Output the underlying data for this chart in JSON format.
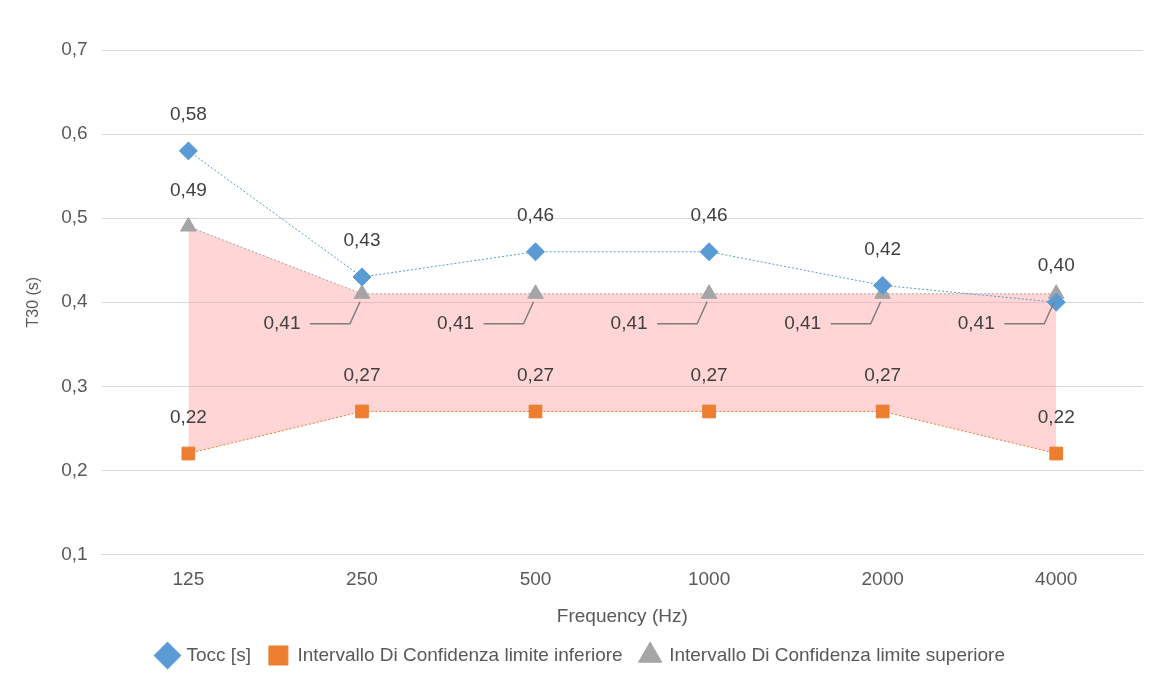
{
  "chart_data": {
    "type": "line",
    "xlabel": "Frequency (Hz)",
    "ylabel": "T30 (s)",
    "categories": [
      "125",
      "250",
      "500",
      "1000",
      "2000",
      "4000"
    ],
    "ylim": [
      0.1,
      0.7
    ],
    "yticks": [
      {
        "value": 0.1,
        "label": "0,1"
      },
      {
        "value": 0.2,
        "label": "0,2"
      },
      {
        "value": 0.3,
        "label": "0,3"
      },
      {
        "value": 0.4,
        "label": "0,4"
      },
      {
        "value": 0.5,
        "label": "0,5"
      },
      {
        "value": 0.6,
        "label": "0,6"
      },
      {
        "value": 0.7,
        "label": "0,7"
      }
    ],
    "grid": "y",
    "legend": "bottom",
    "line_style": "dotted",
    "series": [
      {
        "name": "Tocc [s]",
        "color": "#5b9bd5",
        "marker": "diamond",
        "values": [
          0.58,
          0.43,
          0.46,
          0.46,
          0.42,
          0.4
        ],
        "value_labels": [
          "0,58",
          "0,43",
          "0,46",
          "0,46",
          "0,42",
          "0,40"
        ]
      },
      {
        "name": "Intervallo Di Confidenza limite inferiore",
        "color": "#ed7d31",
        "marker": "square",
        "values": [
          0.22,
          0.27,
          0.27,
          0.27,
          0.27,
          0.22
        ],
        "value_labels": [
          "0,22",
          "0,27",
          "0,27",
          "0,27",
          "0,27",
          "0,22"
        ]
      },
      {
        "name": "Intervallo Di Confidenza limite superiore",
        "color": "#a5a5a5",
        "marker": "triangle",
        "values": [
          0.49,
          0.41,
          0.41,
          0.41,
          0.41,
          0.41
        ],
        "value_labels": [
          "0,49",
          "0,41",
          "0,41",
          "0,41",
          "0,41",
          "0,41"
        ],
        "lower": [
          0.22,
          0.27,
          0.27,
          0.27,
          0.27,
          0.22
        ],
        "upper": [
          0.49,
          0.41,
          0.41,
          0.41,
          0.41,
          0.41
        ]
      }
    ]
  }
}
